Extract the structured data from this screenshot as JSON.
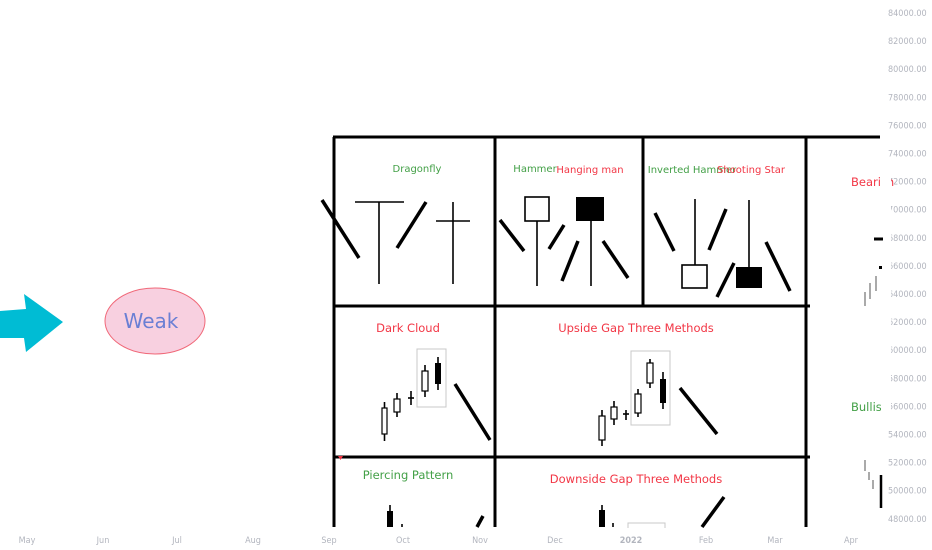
{
  "price_axis": {
    "labels": [
      "84000.00",
      "82000.00",
      "80000.00",
      "78000.00",
      "76000.00",
      "74000.00",
      "72000.00",
      "70000.00",
      "68000.00",
      "66000.00",
      "64000.00",
      "62000.00",
      "60000.00",
      "58000.00",
      "56000.00",
      "54000.00",
      "52000.00",
      "50000.00",
      "48000.00"
    ]
  },
  "time_axis": {
    "labels": [
      "May",
      "Jun",
      "Jul",
      "Aug",
      "Sep",
      "Oct",
      "Nov",
      "Dec",
      "2022",
      "Feb",
      "Mar",
      "Apr"
    ]
  },
  "drawings": {
    "arrow_color": "#00bcd4",
    "weak_label": "Weak",
    "cells": {
      "dragonfly": "Dragonfly",
      "hammer": "Hammer",
      "hanging_man": "Hanging man",
      "inverted_hammer": "Inverted Hammer",
      "shooting_star": "Shooting Star",
      "dark_cloud": "Dark Cloud",
      "upside_gap": "Upside Gap Three Methods",
      "piercing": "Piercing Pattern",
      "downside_gap": "Downside Gap Three Methods",
      "bearish": "Bearish",
      "bullish": "Bullish"
    },
    "colors": {
      "bullish": "#43a047",
      "bearish": "#f23645",
      "weak_text": "#6a7fd4",
      "weak_fill": "#f8d0e0"
    }
  }
}
